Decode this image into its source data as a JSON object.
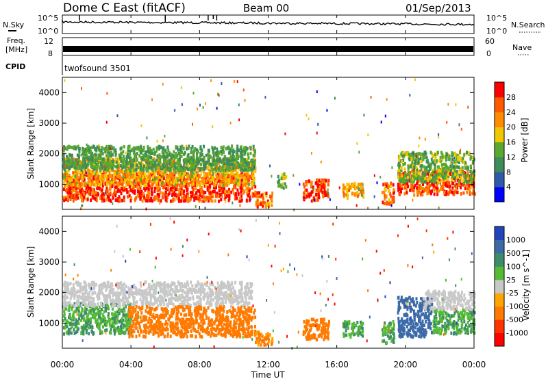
{
  "header": {
    "title": "Dome C East (fitACF)",
    "beam": "Beam 00",
    "date": "01/Sep/2013"
  },
  "top_panels": {
    "nsky_label": "N.Sky",
    "nsearch_label": "N.Search",
    "noise_ticks": [
      "10^5",
      "10^0"
    ],
    "freq_label_1": "Freq.",
    "freq_label_2": "[MHz]",
    "freq_ticks": [
      "12",
      "8"
    ],
    "nave_label": "Nave",
    "nave_ticks": [
      "60",
      "0"
    ],
    "cpid_label": "CPID",
    "cpid_value": "twofsound 3501"
  },
  "time_axis": {
    "label": "Time UT",
    "ticks": [
      "00:00",
      "04:00",
      "08:00",
      "12:00",
      "16:00",
      "20:00",
      "00:00"
    ]
  },
  "colors": {
    "power_scale": [
      "#0000ff",
      "#2e5aa8",
      "#3d8c5a",
      "#5aa82e",
      "#f0c800",
      "#ff8c00",
      "#ff5a00",
      "#ff0000"
    ],
    "velocity_scale": [
      "#2244bb",
      "#3c6aa8",
      "#3d8c6a",
      "#55bb33",
      "#c8c8c8",
      "#ffa500",
      "#ff7a00",
      "#ff3300",
      "#ff0000"
    ]
  },
  "chart_data": [
    {
      "type": "heatmap",
      "panel": "power",
      "ylabel": "Slant Range [km]",
      "yticks": [
        1000,
        2000,
        3000,
        4000
      ],
      "ylim": [
        180,
        4500
      ],
      "xlim_hours": [
        0,
        24
      ],
      "colorbar": {
        "label": "Power [dB]",
        "ticks": [
          "4",
          "8",
          "12",
          "16",
          "20",
          "24",
          "28"
        ],
        "range": [
          0,
          32
        ]
      },
      "regions": [
        {
          "t0": 0.0,
          "t1": 11.2,
          "r0": 500,
          "r1": 1400,
          "value": 28
        },
        {
          "t0": 0.0,
          "t1": 11.2,
          "r0": 1000,
          "r1": 1900,
          "value": 20
        },
        {
          "t0": 0.0,
          "t1": 11.2,
          "r0": 1500,
          "r1": 2300,
          "value": 12
        },
        {
          "t0": 11.2,
          "t1": 12.2,
          "r0": 300,
          "r1": 800,
          "value": 24
        },
        {
          "t0": 12.5,
          "t1": 13.0,
          "r0": 900,
          "r1": 1400,
          "value": 14
        },
        {
          "t0": 14.0,
          "t1": 15.5,
          "r0": 500,
          "r1": 1200,
          "value": 28
        },
        {
          "t0": 16.3,
          "t1": 17.5,
          "r0": 600,
          "r1": 1100,
          "value": 20
        },
        {
          "t0": 18.6,
          "t1": 19.3,
          "r0": 400,
          "r1": 1100,
          "value": 24
        },
        {
          "t0": 19.5,
          "t1": 24.0,
          "r0": 700,
          "r1": 1500,
          "value": 28
        },
        {
          "t0": 19.5,
          "t1": 24.0,
          "r0": 1100,
          "r1": 2100,
          "value": 14
        }
      ]
    },
    {
      "type": "heatmap",
      "panel": "velocity",
      "ylabel": "Slant Range [km]",
      "yticks": [
        1000,
        2000,
        3000,
        4000
      ],
      "ylim": [
        180,
        4500
      ],
      "xlim_hours": [
        0,
        24
      ],
      "colorbar": {
        "label": "Velocity [m s^-1]",
        "ticks": [
          "1000",
          "500",
          "100",
          "25",
          "-25",
          "-100",
          "-500",
          "-1000"
        ],
        "range": [
          -1000,
          1000
        ]
      },
      "regions": [
        {
          "t0": 0.0,
          "t1": 4.0,
          "r0": 700,
          "r1": 1700,
          "value": 100
        },
        {
          "t0": 0.0,
          "t1": 11.0,
          "r0": 1600,
          "r1": 2400,
          "value": 0
        },
        {
          "t0": 3.8,
          "t1": 11.2,
          "r0": 600,
          "r1": 1600,
          "value": -150
        },
        {
          "t0": 11.2,
          "t1": 12.2,
          "r0": 300,
          "r1": 800,
          "value": -100
        },
        {
          "t0": 14.0,
          "t1": 15.5,
          "r0": 500,
          "r1": 1200,
          "value": -150
        },
        {
          "t0": 16.3,
          "t1": 17.5,
          "r0": 600,
          "r1": 1100,
          "value": 100
        },
        {
          "t0": 18.6,
          "t1": 19.3,
          "r0": 400,
          "r1": 1100,
          "value": 100
        },
        {
          "t0": 19.5,
          "t1": 21.5,
          "r0": 600,
          "r1": 1900,
          "value": 700
        },
        {
          "t0": 21.5,
          "t1": 24.0,
          "r0": 700,
          "r1": 1500,
          "value": 100
        },
        {
          "t0": 21.0,
          "t1": 24.0,
          "r0": 1500,
          "r1": 2100,
          "value": 0
        }
      ]
    }
  ]
}
